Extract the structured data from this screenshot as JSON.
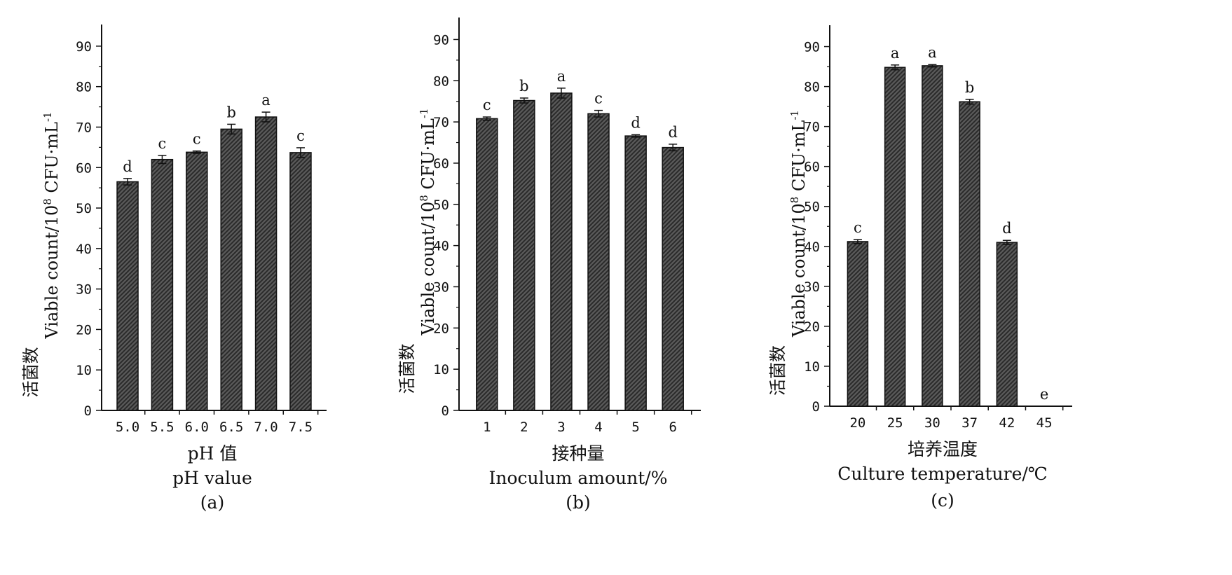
{
  "chart_data": [
    {
      "type": "bar",
      "categories": [
        "5.0",
        "5.5",
        "6.0",
        "6.5",
        "7.0",
        "7.5"
      ],
      "values": [
        56.5,
        62.0,
        63.8,
        69.5,
        72.5,
        63.7
      ],
      "errors": [
        0.8,
        1.0,
        0.3,
        1.2,
        1.2,
        1.2
      ],
      "significance": [
        "d",
        "c",
        "c",
        "b",
        "a",
        "c"
      ],
      "ylim": [
        0,
        95
      ],
      "yticks": [
        0,
        10,
        20,
        30,
        40,
        50,
        60,
        70,
        80,
        90
      ],
      "ylabel_zh": "活菌数",
      "ylabel_en": "Viable count/10",
      "ylabel_sup": "8",
      "ylabel_unit": " CFU·mL",
      "ylabel_unit_sup": "-1",
      "xlabel_zh": "pH 值",
      "xlabel_en": "pH value",
      "panel_label": "(a)"
    },
    {
      "type": "bar",
      "categories": [
        "1",
        "2",
        "3",
        "4",
        "5",
        "6"
      ],
      "values": [
        70.8,
        75.2,
        77.0,
        72.0,
        66.6,
        63.8
      ],
      "errors": [
        0.4,
        0.6,
        1.2,
        0.8,
        0.3,
        0.8
      ],
      "significance": [
        "c",
        "b",
        "a",
        "c",
        "d",
        "d"
      ],
      "ylim": [
        0,
        95
      ],
      "yticks": [
        0,
        10,
        20,
        30,
        40,
        50,
        60,
        70,
        80,
        90
      ],
      "ylabel_zh": "活菌数",
      "ylabel_en": "Viable count/10",
      "ylabel_sup": "8",
      "ylabel_unit": " CFU·mL",
      "ylabel_unit_sup": "-1",
      "xlabel_zh": "接种量",
      "xlabel_en": "Inoculum amount/%",
      "panel_label": "(b)"
    },
    {
      "type": "bar",
      "categories": [
        "20",
        "25",
        "30",
        "37",
        "42",
        "45"
      ],
      "values": [
        41.2,
        84.8,
        85.2,
        76.2,
        41.0,
        0
      ],
      "errors": [
        0.5,
        0.6,
        0.3,
        0.6,
        0.5,
        0
      ],
      "significance": [
        "c",
        "a",
        "a",
        "b",
        "d",
        "e"
      ],
      "ylim": [
        0,
        95
      ],
      "yticks": [
        0,
        10,
        20,
        30,
        40,
        50,
        60,
        70,
        80,
        90
      ],
      "ylabel_zh": "活菌数",
      "ylabel_en": "Viable count/10",
      "ylabel_sup": "8",
      "ylabel_unit": " CFU·mL",
      "ylabel_unit_sup": "-1",
      "xlabel_zh": "培养温度",
      "xlabel_en": "Culture temperature/℃",
      "panel_label": "(c)"
    }
  ],
  "colors": {
    "bar_fill": "#5a5a5a",
    "bar_hatch": "#2a2a2a",
    "axis": "#111111"
  }
}
